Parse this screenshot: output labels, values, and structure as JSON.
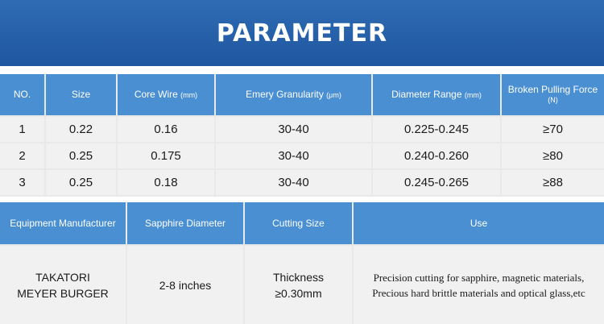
{
  "banner": {
    "title": "PARAMETER"
  },
  "table1": {
    "headers": {
      "no": "NO.",
      "size": "Size",
      "core_wire": "Core Wire",
      "core_wire_unit": "(mm)",
      "emery": "Emery Granularity",
      "emery_unit": "(μm)",
      "diameter_range": "Diameter Range",
      "diameter_range_unit": "(mm)",
      "broken_force": "Broken Pulling Force",
      "broken_force_unit": "(N)"
    },
    "rows": [
      {
        "no": "1",
        "size": "0.22",
        "core_wire": "0.16",
        "emery": "30-40",
        "diameter_range": "0.225-0.245",
        "broken_force": "≥70"
      },
      {
        "no": "2",
        "size": "0.25",
        "core_wire": "0.175",
        "emery": "30-40",
        "diameter_range": "0.240-0.260",
        "broken_force": "≥80"
      },
      {
        "no": "3",
        "size": "0.25",
        "core_wire": "0.18",
        "emery": "30-40",
        "diameter_range": "0.245-0.265",
        "broken_force": "≥88"
      }
    ]
  },
  "table2": {
    "headers": {
      "manufacturer": "Equipment Manufacturer",
      "sapphire_diameter": "Sapphire Diameter",
      "cutting_size": "Cutting Size",
      "use": "Use"
    },
    "row": {
      "manufacturer_line1": "TAKATORI",
      "manufacturer_line2": "MEYER BURGER",
      "sapphire_diameter": "2-8 inches",
      "cutting_size_line1": "Thickness",
      "cutting_size_line2": "≥0.30mm",
      "use_line1": "Precision cutting for sapphire, magnetic materials,",
      "use_line2": "Precious hard brittle materials and optical glass,etc"
    }
  },
  "colors": {
    "banner": "#1f56a0",
    "header_cell": "#4a8fd2",
    "data_cell": "#f1f1f1",
    "grid": "#e9e9e9"
  }
}
